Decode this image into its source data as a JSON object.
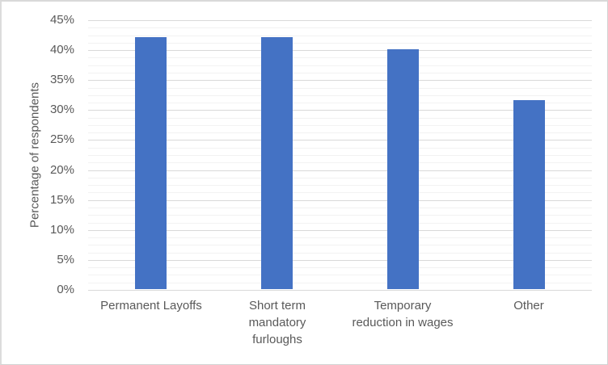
{
  "chart_data": {
    "type": "bar",
    "title": "",
    "categories": [
      "Permanent Layoffs",
      "Short term mandatory furloughs",
      "Temporary reduction in wages",
      "Other"
    ],
    "category_lines": [
      [
        "Permanent Layoffs"
      ],
      [
        "Short term",
        "mandatory",
        "furloughs"
      ],
      [
        "Temporary",
        "reduction in wages"
      ],
      [
        "Other"
      ]
    ],
    "values": [
      42,
      42,
      40,
      31.5
    ],
    "xlabel": "",
    "ylabel": "Percentage of respondents",
    "ylim": [
      0,
      45
    ],
    "ytick_step": 5,
    "ytick_labels": [
      "0%",
      "5%",
      "10%",
      "15%",
      "20%",
      "25%",
      "30%",
      "35%",
      "40%",
      "45%"
    ],
    "yminor_step": 1.25,
    "grid": true,
    "minor_grid": true,
    "legend": false,
    "bar_color": "#4472C4",
    "major_grid_color": "#d9d9d9",
    "minor_grid_color": "#f2f2f2",
    "text_color": "#595959",
    "background_color": "#ffffff",
    "border_color": "#d9d9d9"
  }
}
